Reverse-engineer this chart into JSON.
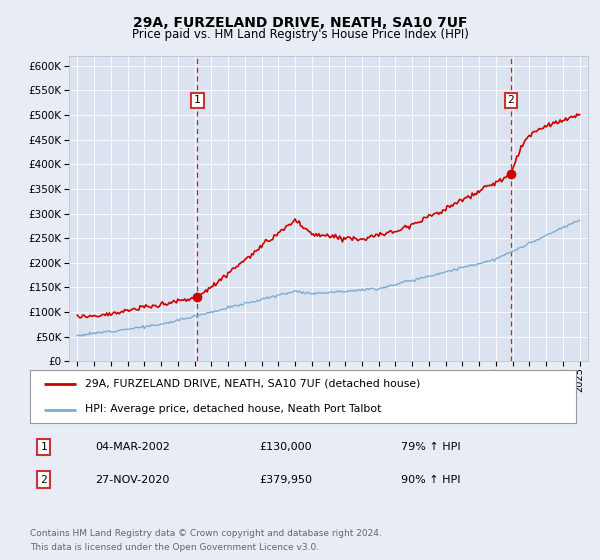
{
  "title": "29A, FURZELAND DRIVE, NEATH, SA10 7UF",
  "subtitle": "Price paid vs. HM Land Registry's House Price Index (HPI)",
  "background_color": "#e8ecf4",
  "plot_bg_color": "#dce3f0",
  "sale1_date": "04-MAR-2002",
  "sale1_price": 130000,
  "sale1_price_str": "£130,000",
  "sale1_pct": "79%",
  "sale2_date": "27-NOV-2020",
  "sale2_price": 379950,
  "sale2_price_str": "£379,950",
  "sale2_pct": "90%",
  "legend_red": "29A, FURZELAND DRIVE, NEATH, SA10 7UF (detached house)",
  "legend_blue": "HPI: Average price, detached house, Neath Port Talbot",
  "footer_line1": "Contains HM Land Registry data © Crown copyright and database right 2024.",
  "footer_line2": "This data is licensed under the Open Government Licence v3.0.",
  "ylim_max": 620000,
  "red_color": "#cc0000",
  "blue_color": "#7aadd4",
  "sale_box_edge": "#cc3333",
  "grid_color": "#ffffff",
  "sale1_x": 2002.17,
  "sale2_x": 2020.9
}
